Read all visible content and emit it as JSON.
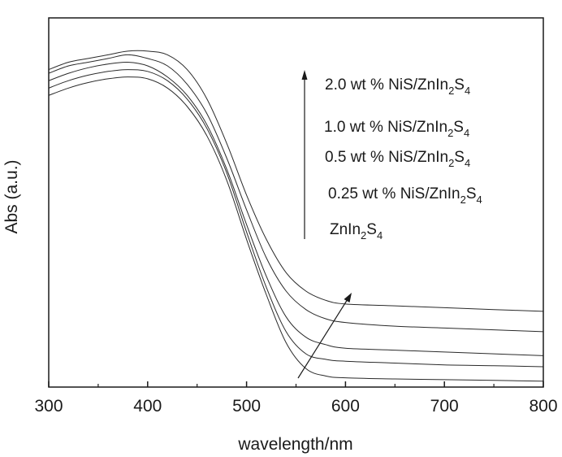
{
  "chart_data": {
    "type": "line",
    "title": "",
    "xlabel": "wavelength/nm",
    "ylabel": "Abs (a.u.)",
    "xlim": [
      300,
      800
    ],
    "ylim": [
      0,
      1
    ],
    "x_ticks": [
      "300",
      "400",
      "500",
      "600",
      "700",
      "800"
    ],
    "y_ticks_visible": false,
    "grid": false,
    "legend_position": "top-right",
    "legend_arrow": "up (ZnIn2S4 to 2.0 wt %)",
    "trend_arrow": "increasing NiS loading raises absorption beyond 550 nm",
    "legend": [
      {
        "pre": "2.0 wt % NiS/ZnIn",
        "s1": "2",
        "mid": "S",
        "s2": "4"
      },
      {
        "pre": "1.0 wt % NiS/ZnIn",
        "s1": "2",
        "mid": "S",
        "s2": "4"
      },
      {
        "pre": "0.5 wt % NiS/ZnIn",
        "s1": "2",
        "mid": "S",
        "s2": "4"
      },
      {
        "pre": "0.25 wt % NiS/ZnIn",
        "s1": "2",
        "mid": "S",
        "s2": "4"
      },
      {
        "pre": "ZnIn",
        "s1": "2",
        "mid": "S",
        "s2": "4"
      }
    ],
    "x": [
      300,
      320,
      340,
      360,
      380,
      400,
      420,
      440,
      460,
      480,
      500,
      520,
      540,
      560,
      580,
      600,
      650,
      700,
      750,
      800
    ],
    "series": [
      {
        "name": "2.0 wt % NiS/ZnIn2S4",
        "values": [
          0.86,
          0.88,
          0.89,
          0.9,
          0.91,
          0.91,
          0.9,
          0.86,
          0.78,
          0.66,
          0.52,
          0.4,
          0.31,
          0.26,
          0.235,
          0.225,
          0.22,
          0.215,
          0.21,
          0.205
        ]
      },
      {
        "name": "1.0 wt % NiS/ZnIn2S4",
        "values": [
          0.85,
          0.87,
          0.88,
          0.89,
          0.9,
          0.89,
          0.87,
          0.82,
          0.74,
          0.62,
          0.48,
          0.35,
          0.26,
          0.21,
          0.185,
          0.175,
          0.165,
          0.16,
          0.155,
          0.15
        ]
      },
      {
        "name": "0.5 wt % NiS/ZnIn2S4",
        "values": [
          0.83,
          0.85,
          0.865,
          0.875,
          0.88,
          0.87,
          0.84,
          0.79,
          0.71,
          0.59,
          0.44,
          0.3,
          0.19,
          0.135,
          0.115,
          0.105,
          0.1,
          0.095,
          0.09,
          0.085
        ]
      },
      {
        "name": "0.25 wt % NiS/ZnIn2S4",
        "values": [
          0.81,
          0.83,
          0.845,
          0.855,
          0.86,
          0.855,
          0.83,
          0.78,
          0.7,
          0.58,
          0.42,
          0.27,
          0.15,
          0.09,
          0.075,
          0.07,
          0.065,
          0.06,
          0.058,
          0.055
        ]
      },
      {
        "name": "ZnIn2S4",
        "values": [
          0.79,
          0.81,
          0.825,
          0.835,
          0.84,
          0.835,
          0.81,
          0.76,
          0.68,
          0.56,
          0.4,
          0.25,
          0.12,
          0.05,
          0.03,
          0.025,
          0.022,
          0.02,
          0.018,
          0.016
        ]
      }
    ]
  }
}
